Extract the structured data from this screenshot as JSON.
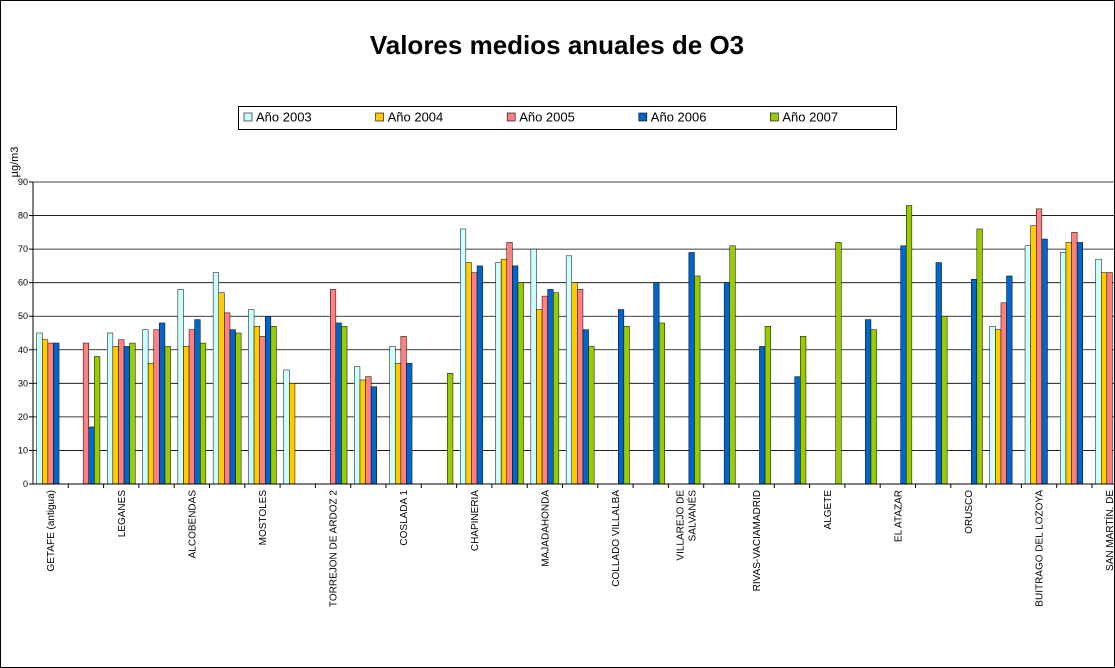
{
  "chart_data": {
    "type": "bar",
    "title": "Valores medios anuales de O3",
    "y_label": "µg/m3",
    "categories": [
      "GETAFE (antigua)",
      null,
      "LEGANES",
      null,
      "ALCOBENDAS",
      null,
      "MOSTOLES",
      null,
      "TORREJON DE ARDOZ 2",
      null,
      "COSLADA 1",
      null,
      "CHAPINERIA",
      null,
      "MAJADAHONDA",
      null,
      "COLLADO VILLALBA",
      null,
      "VILLAREJO DE\nSALVANÉS",
      null,
      "RIVAS-VACIAMADRID",
      null,
      "ALGETE",
      null,
      "EL ATAZAR",
      null,
      "ORUSCO",
      null,
      "BUITRAGO DEL LOZOYA",
      null,
      "SAN MARTÍN. DE"
    ],
    "series": [
      {
        "name": "Año 2003",
        "color": "#ccffff",
        "values": [
          45,
          null,
          45,
          46,
          58,
          63,
          52,
          34,
          null,
          35,
          41,
          null,
          76,
          66,
          70,
          68,
          null,
          null,
          null,
          null,
          null,
          null,
          null,
          null,
          null,
          null,
          null,
          47,
          71,
          69,
          67
        ]
      },
      {
        "name": "Año 2004",
        "color": "#ffcc00",
        "values": [
          43,
          null,
          41,
          36,
          41,
          57,
          47,
          30,
          null,
          31,
          36,
          null,
          66,
          67,
          52,
          60,
          null,
          null,
          null,
          null,
          null,
          null,
          null,
          null,
          null,
          null,
          null,
          46,
          77,
          72,
          63
        ]
      },
      {
        "name": "Año 2005",
        "color": "#ff8080",
        "values": [
          42,
          42,
          43,
          46,
          46,
          51,
          44,
          null,
          58,
          32,
          44,
          null,
          63,
          72,
          56,
          58,
          null,
          null,
          null,
          null,
          null,
          null,
          null,
          null,
          null,
          null,
          null,
          54,
          82,
          75,
          63
        ]
      },
      {
        "name": "Año 2006",
        "color": "#0066cc",
        "values": [
          42,
          17,
          41,
          48,
          49,
          46,
          50,
          null,
          48,
          29,
          36,
          null,
          65,
          65,
          58,
          46,
          52,
          60,
          69,
          60,
          41,
          32,
          null,
          49,
          71,
          66,
          61,
          62,
          73,
          72,
          null
        ]
      },
      {
        "name": "Año 2007",
        "color": "#99cc00",
        "values": [
          null,
          38,
          42,
          41,
          42,
          45,
          47,
          null,
          47,
          null,
          null,
          33,
          null,
          60,
          57,
          41,
          47,
          48,
          62,
          71,
          47,
          44,
          72,
          46,
          83,
          50,
          76,
          null,
          null,
          null,
          null
        ]
      }
    ],
    "ylim": [
      0,
      90
    ],
    "yticks": [
      0,
      10,
      20,
      30,
      40,
      50,
      60,
      70,
      80,
      90
    ],
    "grid": true,
    "legend": "top"
  }
}
